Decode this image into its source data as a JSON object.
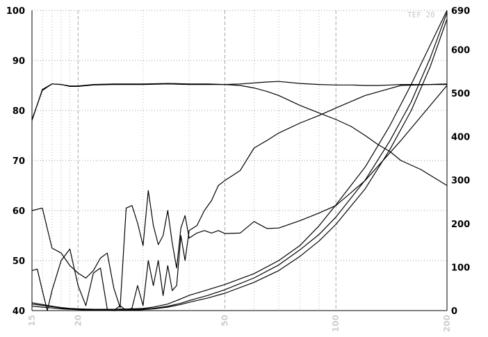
{
  "chart_data": {
    "type": "line",
    "watermark": "TEF 20",
    "x_axis": {
      "scale": "log",
      "range": [
        15,
        200
      ],
      "ticks": [
        15,
        20,
        50,
        100,
        200
      ]
    },
    "y_left": {
      "range": [
        40,
        100
      ],
      "ticks": [
        40,
        50,
        60,
        70,
        80,
        90,
        100
      ]
    },
    "y_right": {
      "range": [
        0,
        690
      ],
      "ticks": [
        0,
        100,
        200,
        300,
        400,
        500,
        600,
        690
      ]
    },
    "grid": true,
    "series": [
      {
        "axis": "left",
        "color": "#000000",
        "x": [
          15,
          16,
          17,
          18,
          19,
          20,
          22,
          25,
          30,
          35,
          40,
          45,
          50,
          55,
          60,
          65,
          70,
          80,
          90,
          100,
          110,
          120,
          130,
          140,
          150,
          170,
          200
        ],
        "y": [
          78.2,
          84,
          85.3,
          85.2,
          84.8,
          84.8,
          85.1,
          85.2,
          85.2,
          85.3,
          85.2,
          85.2,
          85.2,
          85.3,
          85.5,
          85.7,
          85.8,
          85.4,
          85.2,
          85.1,
          85.1,
          85.0,
          85.0,
          85.1,
          85.2,
          85.2,
          85.2
        ]
      },
      {
        "axis": "left",
        "color": "#000000",
        "x": [
          15,
          16,
          17,
          18,
          19,
          20,
          22,
          25,
          30,
          35,
          40,
          45,
          50,
          55,
          60,
          65,
          70,
          80,
          90,
          100,
          110,
          120,
          130,
          140,
          150,
          170,
          200
        ],
        "y": [
          78,
          84.2,
          85.3,
          85.2,
          84.9,
          84.9,
          85.2,
          85.3,
          85.3,
          85.4,
          85.3,
          85.3,
          85.2,
          85.0,
          84.5,
          83.8,
          83.0,
          81.0,
          79.5,
          78.2,
          76.8,
          75.0,
          73.2,
          71.8,
          70.0,
          68.2,
          65.0
        ]
      },
      {
        "axis": "left",
        "color": "#000000",
        "x": [
          15,
          16,
          17,
          18,
          19,
          20,
          21,
          22,
          23,
          24,
          25,
          26,
          27,
          28,
          29,
          30,
          31,
          32,
          33,
          34,
          35,
          36,
          37,
          38,
          39,
          40,
          42,
          44,
          46,
          48,
          50,
          55,
          60,
          65,
          70,
          80,
          90,
          100,
          120,
          150,
          200
        ],
        "y": [
          60,
          60.5,
          52.5,
          51.5,
          49,
          47.5,
          46.5,
          48,
          50.5,
          51.5,
          44.5,
          40.6,
          60.5,
          61,
          57.5,
          53,
          64,
          57,
          53.2,
          55,
          60,
          53.5,
          48.5,
          56.5,
          59,
          54.5,
          55.5,
          56,
          55.5,
          56,
          55.4,
          55.5,
          57.8,
          56.4,
          56.5,
          58,
          59.5,
          61,
          66,
          74,
          85
        ]
      },
      {
        "axis": "left",
        "color": "#000000",
        "x": [
          15,
          15.5,
          16,
          16.5,
          17,
          18,
          19,
          20,
          21,
          22,
          23,
          24,
          25,
          26,
          27,
          28,
          29,
          30,
          31,
          32,
          33,
          34,
          35,
          36,
          37,
          38,
          39,
          40,
          42,
          44,
          46,
          48,
          50,
          55,
          60,
          65,
          70,
          80,
          90,
          100,
          120,
          150,
          200
        ],
        "y": [
          48,
          48.3,
          44,
          40,
          44,
          50,
          52.3,
          45,
          41,
          47.5,
          48.5,
          40.3,
          40,
          41,
          40,
          40.5,
          45,
          41,
          50,
          45,
          50,
          43,
          49,
          44,
          45,
          55,
          50,
          56,
          57,
          60,
          62,
          65,
          66,
          68,
          72.5,
          74,
          75.5,
          77.5,
          79,
          80.5,
          83,
          85,
          85.3
        ]
      },
      {
        "axis": "right",
        "color": "#000000",
        "x": [
          15,
          16,
          17,
          18,
          19,
          20,
          22,
          25,
          28,
          30,
          32,
          35,
          38,
          40,
          45,
          50,
          60,
          70,
          80,
          90,
          100,
          120,
          140,
          160,
          180,
          200
        ],
        "y": [
          15,
          12,
          9,
          6,
          4,
          3,
          2,
          1,
          2,
          3,
          5,
          10,
          17,
          23,
          35,
          48,
          75,
          105,
          140,
          175,
          215,
          300,
          390,
          480,
          580,
          685
        ]
      },
      {
        "axis": "right",
        "color": "#000000",
        "x": [
          15,
          16,
          17,
          18,
          19,
          20,
          22,
          25,
          28,
          30,
          32,
          35,
          38,
          40,
          45,
          50,
          60,
          70,
          80,
          90,
          100,
          120,
          140,
          160,
          180,
          200
        ],
        "y": [
          10,
          8,
          6,
          4,
          3,
          2,
          1,
          0,
          1,
          2,
          4,
          8,
          14,
          19,
          29,
          40,
          65,
          92,
          125,
          160,
          198,
          280,
          370,
          460,
          560,
          670
        ]
      },
      {
        "axis": "right",
        "color": "#000000",
        "x": [
          15,
          16,
          17,
          18,
          19,
          20,
          22,
          25,
          28,
          30,
          32,
          35,
          38,
          40,
          45,
          50,
          60,
          70,
          80,
          90,
          100,
          120,
          140,
          160,
          180,
          200
        ],
        "y": [
          18,
          14,
          10,
          7,
          5,
          4,
          3,
          3,
          4,
          5,
          8,
          15,
          27,
          35,
          48,
          60,
          85,
          115,
          150,
          195,
          243,
          330,
          425,
          520,
          610,
          690
        ]
      }
    ]
  }
}
